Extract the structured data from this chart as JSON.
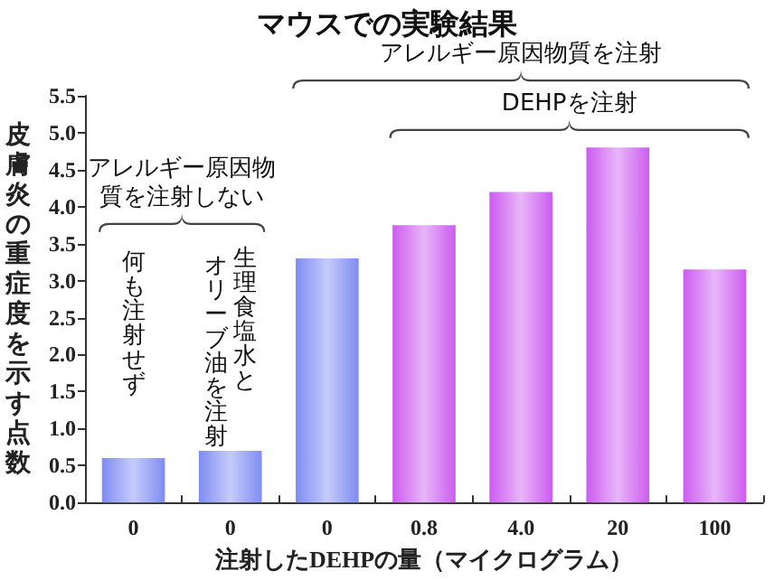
{
  "chart_data": {
    "type": "bar",
    "title": "マウスでの実験結果",
    "xlabel": "注射したDEHPの量（マイクログラム）",
    "ylabel": "皮膚炎の重症度を示す点数",
    "categories": [
      "0",
      "0",
      "0",
      "0.8",
      "4.0",
      "20",
      "100"
    ],
    "values": [
      0.6,
      0.7,
      3.3,
      3.75,
      4.2,
      4.8,
      3.15
    ],
    "colors": [
      "#7f8cf2",
      "#7f8cf2",
      "#7f8cf2",
      "#cc5cf0",
      "#cc5cf0",
      "#cc5cf0",
      "#cc5cf0"
    ],
    "ylim": [
      0,
      5.5
    ],
    "yticks": [
      {
        "value": 0,
        "label": "0.0"
      },
      {
        "value": 0.5,
        "label": "0.5"
      },
      {
        "value": 1,
        "label": "1.0"
      },
      {
        "value": 1.5,
        "label": "1.5"
      },
      {
        "value": 2,
        "label": "2.0"
      },
      {
        "value": 2.5,
        "label": "2.5"
      },
      {
        "value": 3,
        "label": "3.0"
      },
      {
        "value": 3.5,
        "label": "3.5"
      },
      {
        "value": 4,
        "label": "4.0"
      },
      {
        "value": 4.5,
        "label": "4.5"
      },
      {
        "value": 5,
        "label": "5.0"
      },
      {
        "value": 5.5,
        "label": "5.5"
      }
    ],
    "grid": false,
    "annotations": [
      "アレルギー原因物質を注射",
      "DEHPを注射",
      "アレルギー原因物質を注射しない",
      "何も注射せず",
      "生理食塩水と",
      "オリーブ油を注射"
    ]
  }
}
